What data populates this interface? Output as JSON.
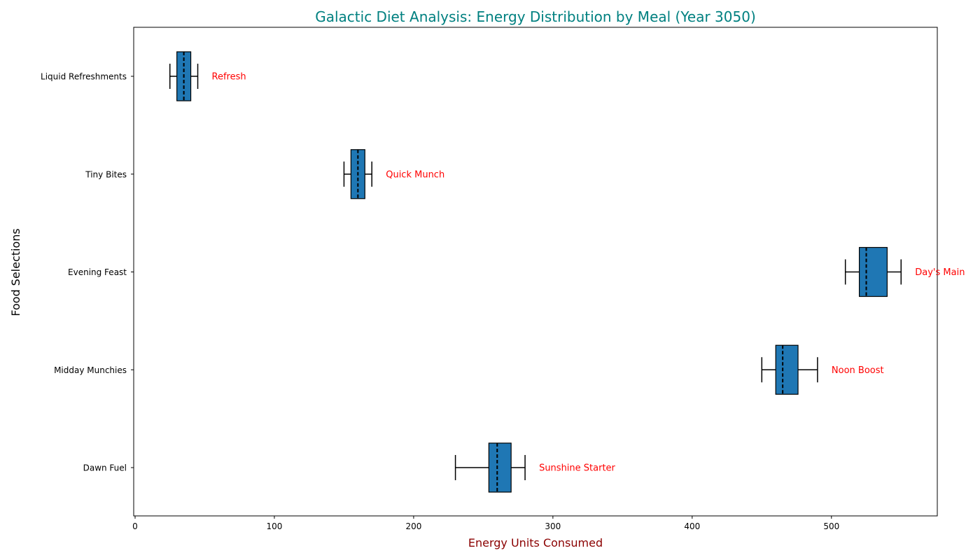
{
  "chart_data": {
    "type": "boxplot",
    "orientation": "horizontal",
    "title": "Galactic Diet Analysis: Energy Distribution by Meal (Year 3050)",
    "xlabel": "Energy Units Consumed",
    "ylabel": "Food Selections",
    "xlim": [
      -1,
      576
    ],
    "x_ticks": [
      0,
      100,
      200,
      300,
      400,
      500
    ],
    "grid": false,
    "categories": [
      "Dawn Fuel",
      "Midday Munchies",
      "Evening Feast",
      "Tiny Bites",
      "Liquid Refreshments"
    ],
    "boxes": [
      {
        "category": "Dawn Fuel",
        "whisker_low": 230,
        "q1": 254,
        "median": 260,
        "q3": 270,
        "whisker_high": 280,
        "annotation": "Sunshine Starter"
      },
      {
        "category": "Midday Munchies",
        "whisker_low": 450,
        "q1": 460,
        "median": 465,
        "q3": 476,
        "whisker_high": 490,
        "annotation": "Noon Boost"
      },
      {
        "category": "Evening Feast",
        "whisker_low": 510,
        "q1": 520,
        "median": 525,
        "q3": 540,
        "whisker_high": 550,
        "annotation": "Day's Main"
      },
      {
        "category": "Tiny Bites",
        "whisker_low": 150,
        "q1": 155,
        "median": 160,
        "q3": 165,
        "whisker_high": 170,
        "annotation": "Quick Munch"
      },
      {
        "category": "Liquid Refreshments",
        "whisker_low": 25,
        "q1": 30,
        "median": 35,
        "q3": 40,
        "whisker_high": 45,
        "annotation": "Refresh"
      }
    ],
    "colors": {
      "box_fill": "#1f77b4",
      "box_edge": "#000000",
      "median_line": "#000000",
      "title": "#008080",
      "xlabel": "#8b0000",
      "ylabel": "#000000",
      "annotation": "#ff0000"
    }
  }
}
